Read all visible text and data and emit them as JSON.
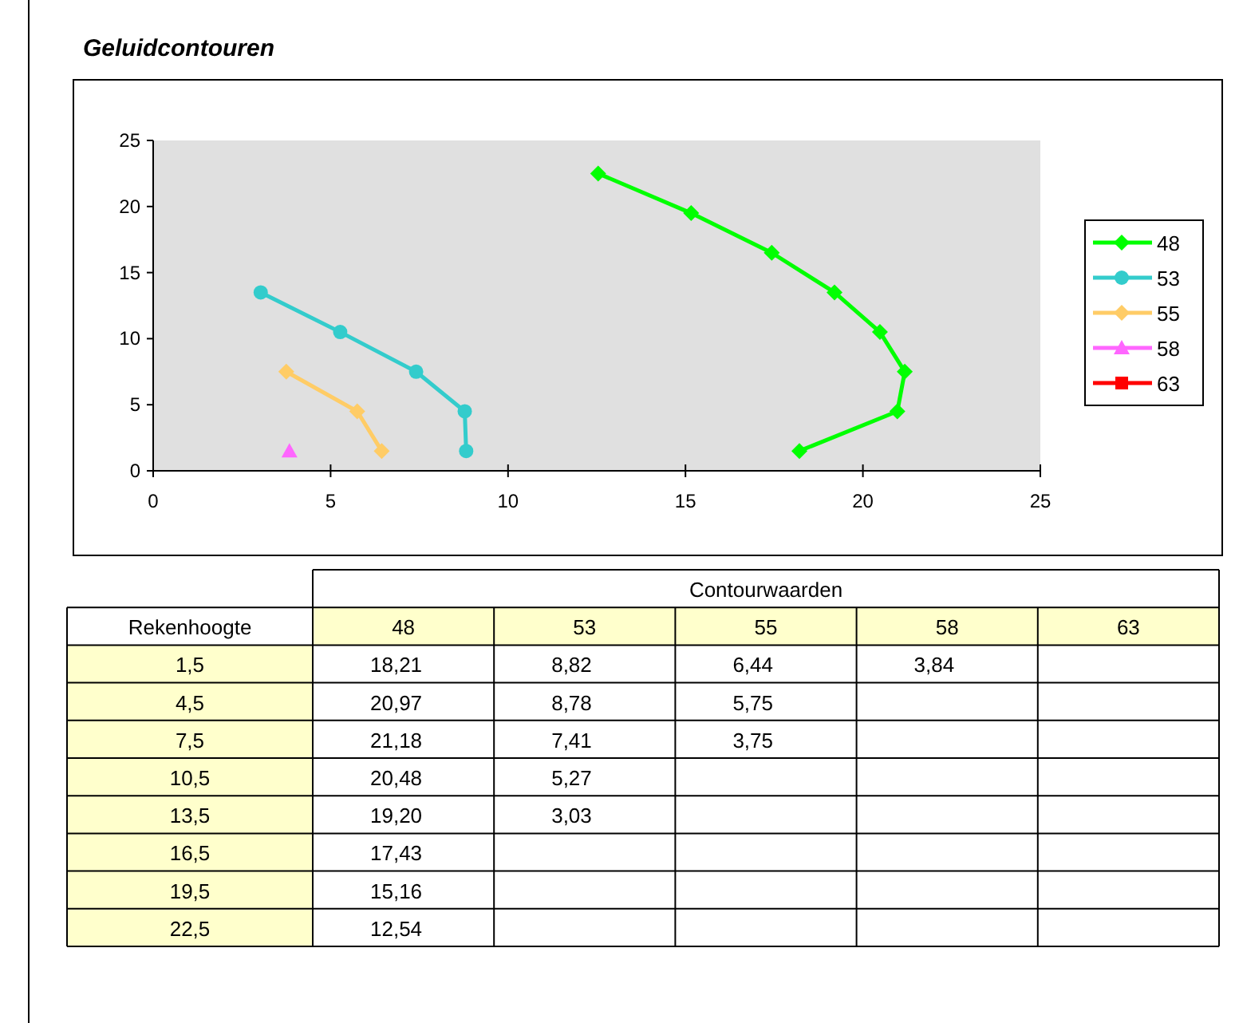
{
  "chart_data": [
    {
      "type": "line",
      "title": "Geluidcontouren",
      "xlim": [
        0,
        25
      ],
      "xticks": [
        0,
        5,
        10,
        15,
        20,
        25
      ],
      "ylim": [
        0,
        25
      ],
      "yticks": [
        0,
        5,
        10,
        15,
        20,
        25
      ],
      "legend": "right",
      "series": [
        {
          "name": "48",
          "color": "#00ff00",
          "marker": "diamond",
          "x": [
            18.21,
            20.97,
            21.18,
            20.48,
            19.2,
            17.43,
            15.16,
            12.54
          ],
          "values": [
            1.5,
            4.5,
            7.5,
            10.5,
            13.5,
            16.5,
            19.5,
            22.5
          ]
        },
        {
          "name": "53",
          "color": "#33cccc",
          "marker": "circle",
          "x": [
            8.82,
            8.78,
            7.41,
            5.27,
            3.03
          ],
          "values": [
            1.5,
            4.5,
            7.5,
            10.5,
            13.5
          ]
        },
        {
          "name": "55",
          "color": "#ffcc66",
          "marker": "diamond",
          "x": [
            6.44,
            5.75,
            3.75
          ],
          "values": [
            1.5,
            4.5,
            7.5
          ]
        },
        {
          "name": "58",
          "color": "#ff66ff",
          "marker": "triangle",
          "x": [
            3.84
          ],
          "values": [
            1.5
          ]
        },
        {
          "name": "63",
          "color": "#ff0000",
          "marker": "square"
        }
      ]
    },
    {
      "type": "heatmap",
      "title": "Contourwaarden",
      "ylabel": "Rekenhoogte",
      "categories": [
        "48",
        "53",
        "55",
        "58",
        "63"
      ],
      "y_categories": [
        "1,5",
        "4,5",
        "7,5",
        "10,5",
        "13,5",
        "16,5",
        "19,5",
        "22,5"
      ],
      "cells": [
        [
          18.21,
          8.82,
          6.44,
          3.84,
          null
        ],
        [
          20.97,
          8.78,
          5.75,
          null,
          null
        ],
        [
          21.18,
          7.41,
          3.75,
          null,
          null
        ],
        [
          20.48,
          5.27,
          null,
          null,
          null
        ],
        [
          19.2,
          3.03,
          null,
          null,
          null
        ],
        [
          17.43,
          null,
          null,
          null,
          null
        ],
        [
          15.16,
          null,
          null,
          null,
          null
        ],
        [
          12.54,
          null,
          null,
          null,
          null
        ]
      ],
      "cell_labels": [
        [
          "18,21",
          "8,82",
          "6,44",
          "3,84",
          null
        ],
        [
          "20,97",
          "8,78",
          "5,75",
          null,
          null
        ],
        [
          "21,18",
          "7,41",
          "3,75",
          null,
          null
        ],
        [
          "20,48",
          "5,27",
          null,
          null,
          null
        ],
        [
          "19,20",
          "3,03",
          null,
          null,
          null
        ],
        [
          "17,43",
          null,
          null,
          null,
          null
        ],
        [
          "15,16",
          null,
          null,
          null,
          null
        ],
        [
          "12,54",
          null,
          null,
          null,
          null
        ]
      ]
    }
  ]
}
